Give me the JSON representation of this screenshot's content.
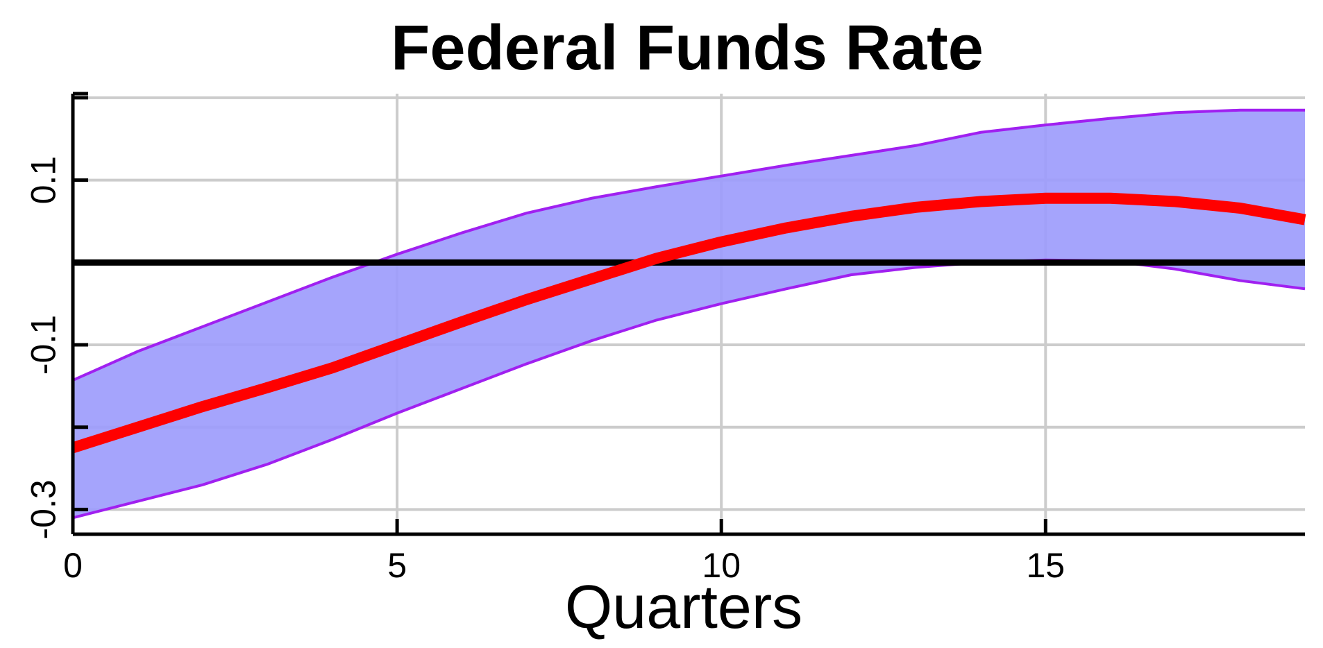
{
  "chart_data": {
    "type": "line",
    "title": "Federal Funds Rate",
    "xlabel": "Quarters",
    "ylabel": "",
    "xlim": [
      0,
      19
    ],
    "ylim": [
      -0.33,
      0.205
    ],
    "x_ticks": [
      0,
      5,
      10,
      15
    ],
    "y_tick_labels": [
      0.1,
      -0.1,
      -0.3
    ],
    "y_gridlines": [
      -0.3,
      -0.2,
      -0.1,
      0.1,
      0.2
    ],
    "grid": true,
    "legend": "none",
    "zero_line": 0,
    "x": [
      0,
      1,
      2,
      3,
      4,
      5,
      6,
      7,
      8,
      9,
      10,
      11,
      12,
      13,
      14,
      15,
      16,
      17,
      18,
      19
    ],
    "series": [
      {
        "role": "median",
        "values": [
          -0.225,
          -0.2,
          -0.175,
          -0.152,
          -0.128,
          -0.1,
          -0.072,
          -0.045,
          -0.02,
          0.005,
          0.025,
          0.042,
          0.056,
          0.067,
          0.074,
          0.078,
          0.078,
          0.074,
          0.066,
          0.052
        ]
      },
      {
        "role": "upper-band",
        "values": [
          -0.143,
          -0.108,
          -0.078,
          -0.048,
          -0.018,
          0.01,
          0.036,
          0.06,
          0.078,
          0.092,
          0.105,
          0.118,
          0.13,
          0.142,
          0.158,
          0.167,
          0.175,
          0.182,
          0.185,
          0.185
        ]
      },
      {
        "role": "lower-band",
        "values": [
          -0.31,
          -0.29,
          -0.27,
          -0.245,
          -0.215,
          -0.183,
          -0.153,
          -0.123,
          -0.095,
          -0.07,
          -0.05,
          -0.032,
          -0.015,
          -0.006,
          0.0,
          0.003,
          0.002,
          -0.008,
          -0.022,
          -0.032
        ]
      }
    ],
    "colors": {
      "band_fill": "#9d9cfc",
      "band_edge": "#a020f0",
      "median": "#ff0000",
      "zero_line": "#000000",
      "grid": "#cccccc",
      "axis": "#000000"
    }
  }
}
